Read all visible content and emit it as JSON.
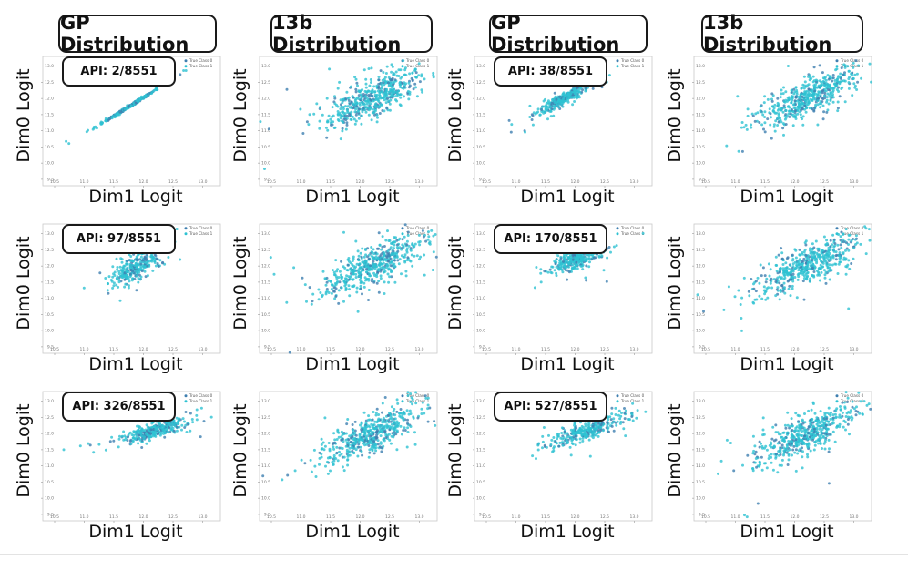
{
  "columns": [
    {
      "title": "GP Distribution"
    },
    {
      "title": "13b Distribution"
    },
    {
      "title": "GP Distribution"
    },
    {
      "title": "13b Distribution"
    }
  ],
  "axis": {
    "xlabel": "Dim1 Logit",
    "ylabel": "Dim0 Logit",
    "xticks": [
      "10.5",
      "11.0",
      "11.5",
      "12.0",
      "12.5",
      "13.0"
    ],
    "yticks": [
      "9.5",
      "10.0",
      "10.5",
      "11.0",
      "11.5",
      "12.0",
      "12.5",
      "13.0"
    ],
    "legend": [
      "True Class 0",
      "True Class 1"
    ]
  },
  "api_labels": [
    "API: 2/8551",
    "API: 38/8551",
    "API: 97/8551",
    "API: 170/8551",
    "API: 326/8551",
    "API: 527/8551"
  ],
  "colors": {
    "class0": "#3f7fb0",
    "class1": "#2ec2d2"
  },
  "chart_data": [
    {
      "type": "scatter",
      "distribution": "GP",
      "api": "2/8551",
      "xlabel": "Dim1 Logit",
      "ylabel": "Dim0 Logit",
      "xlim": [
        10.3,
        13.3
      ],
      "ylim": [
        9.3,
        13.3
      ],
      "center": [
        11.8,
        11.8
      ],
      "spread": [
        0.25,
        0.02
      ],
      "slope": 1.15,
      "legend": [
        "True Class 0",
        "True Class 1"
      ]
    },
    {
      "type": "scatter",
      "distribution": "13b",
      "xlabel": "Dim1 Logit",
      "ylabel": "Dim0 Logit",
      "xlim": [
        10.3,
        13.3
      ],
      "ylim": [
        9.3,
        13.3
      ],
      "center": [
        12.2,
        12.0
      ],
      "spread": [
        0.42,
        0.3
      ],
      "slope": 0.8,
      "legend": [
        "True Class 0",
        "True Class 1"
      ]
    },
    {
      "type": "scatter",
      "distribution": "GP",
      "api": "38/8551",
      "xlabel": "Dim1 Logit",
      "ylabel": "Dim0 Logit",
      "xlim": [
        10.3,
        13.3
      ],
      "ylim": [
        9.3,
        13.3
      ],
      "center": [
        11.8,
        12.0
      ],
      "spread": [
        0.22,
        0.09
      ],
      "slope": 1.05,
      "legend": [
        "True Class 0",
        "True Class 1"
      ]
    },
    {
      "type": "scatter",
      "distribution": "13b",
      "xlabel": "Dim1 Logit",
      "ylabel": "Dim0 Logit",
      "xlim": [
        10.3,
        13.3
      ],
      "ylim": [
        9.3,
        13.3
      ],
      "center": [
        12.2,
        12.0
      ],
      "spread": [
        0.42,
        0.3
      ],
      "slope": 0.8,
      "legend": [
        "True Class 0",
        "True Class 1"
      ]
    },
    {
      "type": "scatter",
      "distribution": "GP",
      "api": "97/8551",
      "xlabel": "Dim1 Logit",
      "ylabel": "Dim0 Logit",
      "xlim": [
        10.3,
        13.3
      ],
      "ylim": [
        9.3,
        13.3
      ],
      "center": [
        11.9,
        12.0
      ],
      "spread": [
        0.2,
        0.2
      ],
      "slope": 1.0,
      "legend": [
        "True Class 0",
        "True Class 1"
      ]
    },
    {
      "type": "scatter",
      "distribution": "13b",
      "xlabel": "Dim1 Logit",
      "ylabel": "Dim0 Logit",
      "xlim": [
        10.3,
        13.3
      ],
      "ylim": [
        9.3,
        13.3
      ],
      "center": [
        12.2,
        12.0
      ],
      "spread": [
        0.42,
        0.3
      ],
      "slope": 0.8,
      "legend": [
        "True Class 0",
        "True Class 1"
      ]
    },
    {
      "type": "scatter",
      "distribution": "GP",
      "api": "170/8551",
      "xlabel": "Dim1 Logit",
      "ylabel": "Dim0 Logit",
      "xlim": [
        10.3,
        13.3
      ],
      "ylim": [
        9.3,
        13.3
      ],
      "center": [
        12.0,
        12.2
      ],
      "spread": [
        0.2,
        0.15
      ],
      "slope": 0.6,
      "legend": [
        "True Class 0",
        "True Class 1"
      ]
    },
    {
      "type": "scatter",
      "distribution": "13b",
      "xlabel": "Dim1 Logit",
      "ylabel": "Dim0 Logit",
      "xlim": [
        10.3,
        13.3
      ],
      "ylim": [
        9.3,
        13.3
      ],
      "center": [
        12.2,
        12.0
      ],
      "spread": [
        0.42,
        0.3
      ],
      "slope": 0.8,
      "legend": [
        "True Class 0",
        "True Class 1"
      ]
    },
    {
      "type": "scatter",
      "distribution": "GP",
      "api": "326/8551",
      "xlabel": "Dim1 Logit",
      "ylabel": "Dim0 Logit",
      "xlim": [
        10.3,
        13.3
      ],
      "ylim": [
        9.3,
        13.3
      ],
      "center": [
        12.2,
        12.1
      ],
      "spread": [
        0.3,
        0.12
      ],
      "slope": 0.5,
      "legend": [
        "True Class 0",
        "True Class 1"
      ]
    },
    {
      "type": "scatter",
      "distribution": "13b",
      "xlabel": "Dim1 Logit",
      "ylabel": "Dim0 Logit",
      "xlim": [
        10.3,
        13.3
      ],
      "ylim": [
        9.3,
        13.3
      ],
      "center": [
        12.2,
        12.0
      ],
      "spread": [
        0.42,
        0.3
      ],
      "slope": 0.8,
      "legend": [
        "True Class 0",
        "True Class 1"
      ]
    },
    {
      "type": "scatter",
      "distribution": "GP",
      "api": "527/8551",
      "xlabel": "Dim1 Logit",
      "ylabel": "Dim0 Logit",
      "xlim": [
        10.3,
        13.3
      ],
      "ylim": [
        9.3,
        13.3
      ],
      "center": [
        12.2,
        12.1
      ],
      "spread": [
        0.4,
        0.15
      ],
      "slope": 0.6,
      "legend": [
        "True Class 0",
        "True Class 1"
      ]
    },
    {
      "type": "scatter",
      "distribution": "13b",
      "xlabel": "Dim1 Logit",
      "ylabel": "Dim0 Logit",
      "xlim": [
        10.3,
        13.3
      ],
      "ylim": [
        9.3,
        13.3
      ],
      "center": [
        12.2,
        12.0
      ],
      "spread": [
        0.42,
        0.3
      ],
      "slope": 0.8,
      "legend": [
        "True Class 0",
        "True Class 1"
      ]
    }
  ]
}
